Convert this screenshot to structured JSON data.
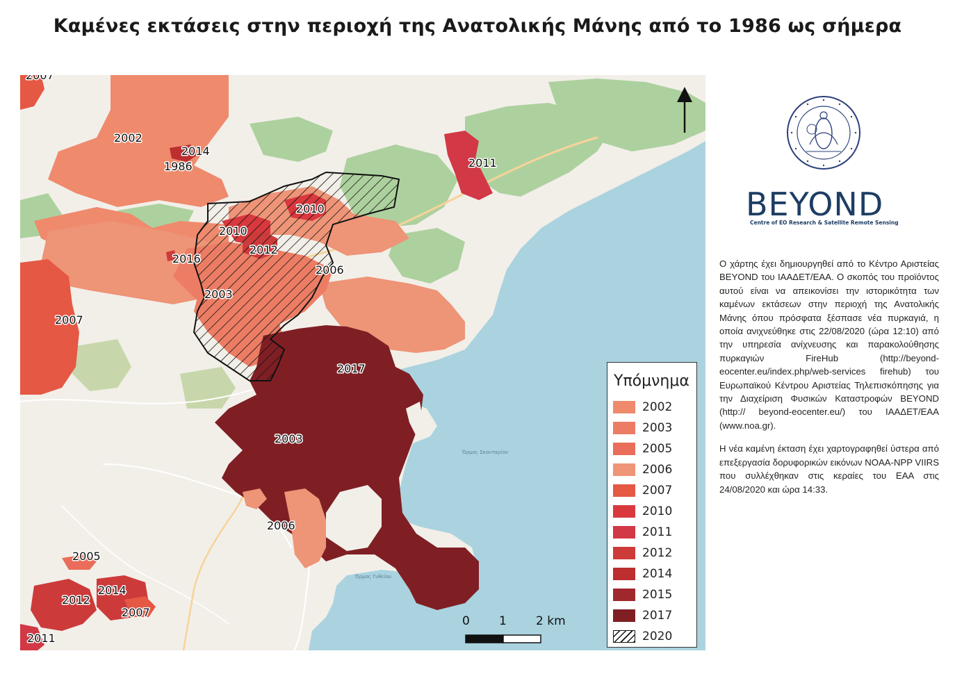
{
  "title": "Καμένες εκτάσεις στην περιοχή της Ανατολικής Μάνης από το 1986 ως σήμερα",
  "map": {
    "colors": {
      "land": "#f2efe9",
      "sea": "#aad3df",
      "forest": "#add19e",
      "scrub": "#c8d7ab",
      "road": "#ffffff",
      "road_major": "#f7d39a"
    },
    "region_labels": [
      {
        "text": "2007"
      },
      {
        "text": "2002"
      },
      {
        "text": "2014"
      },
      {
        "text": "1986"
      },
      {
        "text": "2011"
      },
      {
        "text": "2010"
      },
      {
        "text": "2010"
      },
      {
        "text": "2012"
      },
      {
        "text": "2016"
      },
      {
        "text": "2006"
      },
      {
        "text": "2003"
      },
      {
        "text": "2007"
      },
      {
        "text": "2017"
      },
      {
        "text": "2003"
      },
      {
        "text": "2006"
      },
      {
        "text": "2005"
      },
      {
        "text": "2014"
      },
      {
        "text": "2012"
      },
      {
        "text": "2007"
      },
      {
        "text": "2011"
      }
    ],
    "sea_labels": [
      "Όρμος Σκουταρίου",
      "Όρμος Γυθείου"
    ]
  },
  "legend": {
    "title": "Υπόμνημα",
    "items": [
      {
        "label": "2002",
        "color": "#ef8a6d"
      },
      {
        "label": "2003",
        "color": "#ec7d64"
      },
      {
        "label": "2005",
        "color": "#ea6c5a"
      },
      {
        "label": "2006",
        "color": "#ee9477"
      },
      {
        "label": "2007",
        "color": "#e55844"
      },
      {
        "label": "2010",
        "color": "#d9383e"
      },
      {
        "label": "2011",
        "color": "#d23845"
      },
      {
        "label": "2012",
        "color": "#cd3a3a"
      },
      {
        "label": "2014",
        "color": "#bc2e30"
      },
      {
        "label": "2015",
        "color": "#a0282d"
      },
      {
        "label": "2017",
        "color": "#7f1f24"
      },
      {
        "label": "2020",
        "color": "hatch"
      }
    ]
  },
  "scale_bar": {
    "labels": [
      "0",
      "1",
      "2 km"
    ]
  },
  "north_arrow": {
    "icon": "north-arrow-icon"
  },
  "seal": {
    "text": "ΕΘΝΙΚΟΝ ΑΣΤΕΡΟΣΚΟΠΕΙΟΝ ΑΘΗΝΩΝ · NATIONAL OBSERVATORY OF ATHENS · 1842"
  },
  "logo": {
    "word": "BEYOND",
    "subtitle": "Centre of EO Research & Satellite Remote Sensing"
  },
  "description": {
    "p1": "Ο χάρτης έχει δημιουργηθεί από το Κέντρο Αριστείας BEYOND του ΙΑΑΔΕΤ/ΕΑΑ. Ο σκοπός του προϊόντος αυτού είναι να απεικονίσει την ιστορικότητα των καμένων εκτάσεων στην περιοχή της Ανατολικής Μάνης όπου πρόσφατα ξέσπασε νέα πυρκαγιά, η οποία ανιχνεύθηκε στις 22/08/2020 (ώρα 12:10) από την υπηρεσία ανίχνευσης και παρακολούθησης πυρκαγιών FireHub (http://beyond-eocenter.eu/index.php/web-services firehub) του Ευρωπαϊκού Κέντρου Αριστείας Τηλεπισκόπησης για την Διαχείριση Φυσικών Καταστροφών BEYOND (http:// beyond-eocenter.eu/) του ΙΑΑΔΕΤ/ΕΑΑ (www.noa.gr).",
    "p2": "Η νέα καμένη έκταση έχει χαρτογραφηθεί ύστερα από επεξεργασία δορυφορικών εικόνων NOAA-NPP VIIRS που συλλέχθηκαν στις κεραίες του ΕΑΑ στις 24/08/2020 και ώρα 14:33."
  }
}
